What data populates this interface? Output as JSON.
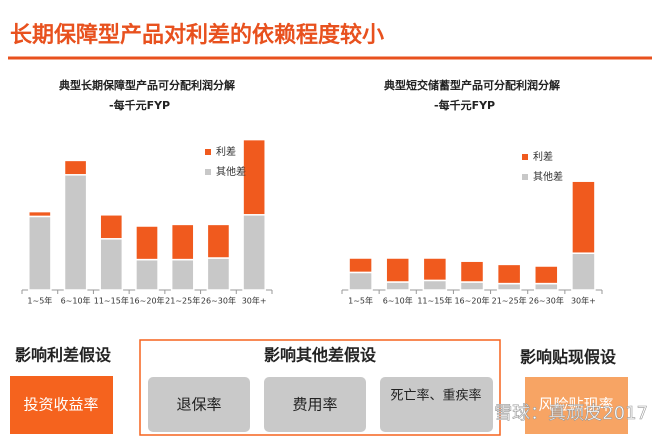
{
  "header": {
    "title": "长期保障型产品对利差的依赖程度较小"
  },
  "chart_data": [
    {
      "type": "stacked-bar",
      "title": "典型长期保障型产品可分配利润分解",
      "subtitle": "-每千元FYP",
      "categories": [
        "1~5年",
        "6~10年",
        "11~15年",
        "16~20年",
        "21~25年",
        "26~30年",
        "30年+"
      ],
      "series": [
        {
          "name": "利差",
          "color": "#f05a1e",
          "values": [
            3,
            9,
            15,
            21,
            22,
            21,
            47
          ]
        },
        {
          "name": "其他差",
          "color": "#c8c8c8",
          "values": [
            46,
            72,
            32,
            19,
            19,
            20,
            47
          ]
        }
      ],
      "ylim": [
        0,
        100
      ]
    },
    {
      "type": "stacked-bar",
      "title": "典型短交储蓄型产品可分配利润分解",
      "subtitle": "-每千元FYP",
      "categories": [
        "1~5年",
        "6~10年",
        "11~15年",
        "16~20年",
        "21~25年",
        "26~30年",
        "30年+"
      ],
      "series": [
        {
          "name": "利差",
          "color": "#f05a1e",
          "values": [
            9,
            15,
            14,
            13,
            12,
            11,
            45
          ]
        },
        {
          "name": "其他差",
          "color": "#c8c8c8",
          "values": [
            11,
            5,
            6,
            5,
            4,
            4,
            23
          ]
        }
      ],
      "ylim": [
        0,
        100
      ]
    }
  ],
  "assumptions": {
    "interest": {
      "title": "影响利差假设",
      "items": [
        "投资收益率"
      ]
    },
    "other": {
      "title": "影响其他差假设",
      "items": [
        "退保率",
        "费用率",
        "死亡率、重疾率"
      ]
    },
    "discount": {
      "title": "影响贴现假设",
      "items": [
        "风险贴现率"
      ]
    }
  },
  "watermark": "雪球：真顽皮2017"
}
